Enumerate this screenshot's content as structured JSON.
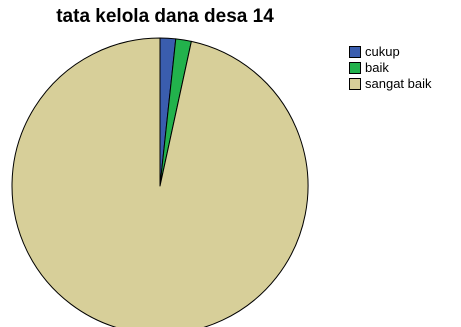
{
  "chart_data": {
    "type": "pie",
    "title": "tata kelola dana desa 14",
    "legend_position": "top-right",
    "categories": [
      "cukup",
      "baik",
      "sangat baik"
    ],
    "values": [
      1.7,
      1.7,
      96.6
    ],
    "colors": [
      "#3a5dae",
      "#22b24c",
      "#d7cf99"
    ],
    "outline_color": "#000000",
    "start": "12 o'clock",
    "direction": "clockwise"
  }
}
